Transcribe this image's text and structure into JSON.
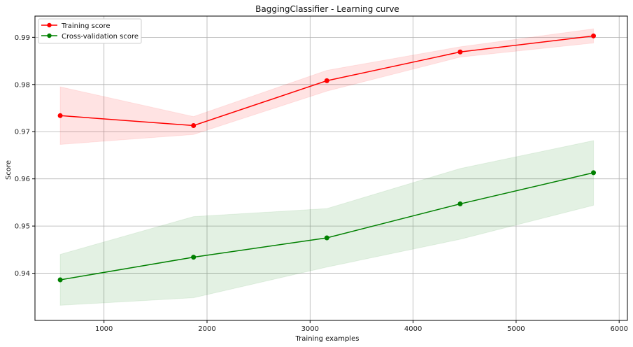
{
  "chart_data": {
    "type": "line",
    "title": "BaggingClassifier - Learning curve",
    "xlabel": "Training examples",
    "ylabel": "Score",
    "xlim": [
      330,
      6080
    ],
    "ylim": [
      0.93,
      0.9945
    ],
    "xticks": [
      1000,
      2000,
      3000,
      4000,
      5000,
      6000
    ],
    "yticks": [
      0.94,
      0.95,
      0.96,
      0.97,
      0.98,
      0.99
    ],
    "grid": true,
    "legend_position": "top-left",
    "x": [
      575,
      1869,
      3163,
      4457,
      5751
    ],
    "series": [
      {
        "name": "Training score",
        "color": "#ff0000",
        "band_color": "#ff0000",
        "values": [
          0.9734,
          0.9713,
          0.9808,
          0.9869,
          0.9903
        ],
        "lower": [
          0.9673,
          0.9694,
          0.9786,
          0.9858,
          0.9888
        ],
        "upper": [
          0.9795,
          0.9732,
          0.983,
          0.988,
          0.9918
        ]
      },
      {
        "name": "Cross-validation score",
        "color": "#008000",
        "band_color": "#008000",
        "values": [
          0.9386,
          0.9434,
          0.9475,
          0.9547,
          0.9613
        ],
        "lower": [
          0.9332,
          0.9348,
          0.9413,
          0.9472,
          0.9544
        ],
        "upper": [
          0.944,
          0.952,
          0.9537,
          0.9622,
          0.9681
        ]
      }
    ]
  }
}
